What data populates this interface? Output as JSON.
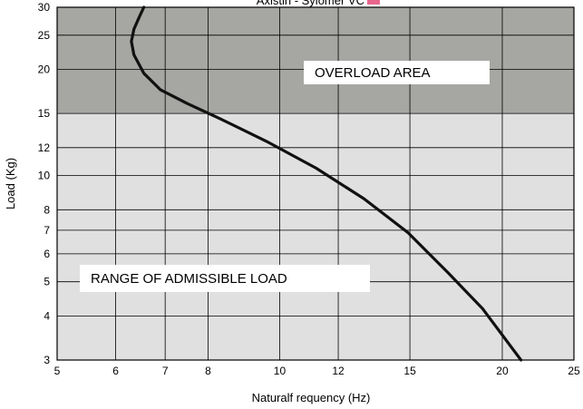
{
  "chart_data": {
    "type": "line",
    "title": "Axistin - Sylomer  VC",
    "title_swatch_color": "#e8668c",
    "xlabel": "Naturalf requency (Hz)",
    "ylabel": "Load (Kg)",
    "xscale": "log",
    "yscale": "log",
    "xlim": [
      5,
      25
    ],
    "ylim": [
      3,
      30
    ],
    "x_ticks": [
      5,
      6,
      7,
      8,
      10,
      12,
      15,
      20,
      25
    ],
    "y_ticks": [
      3,
      4,
      5,
      6,
      7,
      8,
      10,
      12,
      15,
      20,
      25,
      30
    ],
    "grid": true,
    "regions": [
      {
        "label": "OVERLOAD AREA",
        "from": 15,
        "to": 30,
        "color": "#a6a6a2"
      },
      {
        "label": "RANGE OF ADMISSIBLE LOAD",
        "from": 3,
        "to": 15,
        "color": "#e0e0e0"
      }
    ],
    "series": [
      {
        "color": "#111111",
        "x": [
          6.55,
          6.45,
          6.35,
          6.3,
          6.35,
          6.55,
          6.9,
          7.5,
          8.3,
          9.6,
          11.2,
          13.0,
          14.9,
          16.9,
          18.8,
          21.2
        ],
        "y": [
          30,
          28,
          26,
          24,
          22,
          19.5,
          17.5,
          16,
          14.5,
          12.5,
          10.5,
          8.6,
          6.9,
          5.3,
          4.2,
          3.0
        ]
      }
    ]
  }
}
